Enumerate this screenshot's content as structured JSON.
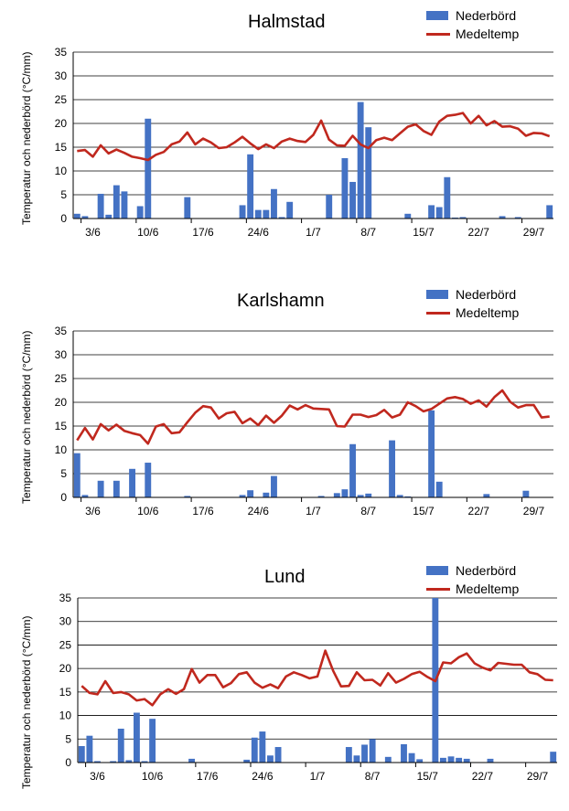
{
  "chart_data": [
    {
      "type": "bar",
      "title": "Halmstad",
      "ylabel": "Temperatur och nederbörd (°C/mm)",
      "xlabel": "",
      "ylim": [
        0,
        35
      ],
      "yticks": [
        0,
        5,
        10,
        15,
        20,
        25,
        30,
        35
      ],
      "grid": true,
      "legend_position": "top-right",
      "x_ticklabels": [
        "3/6",
        "10/6",
        "17/6",
        "24/6",
        "1/7",
        "8/7",
        "15/7",
        "22/7",
        "29/7"
      ],
      "series": [
        {
          "name": "Nederbörd",
          "kind": "bar",
          "color": "#4472C4",
          "values": [
            1.0,
            0.5,
            0,
            5.2,
            0.8,
            7.0,
            5.7,
            0,
            2.6,
            21.0,
            0,
            0,
            0,
            0,
            4.5,
            0,
            0,
            0,
            0,
            0,
            0,
            2.8,
            13.5,
            1.8,
            1.8,
            6.2,
            0.3,
            3.5,
            0,
            0,
            0,
            0,
            5.0,
            0,
            12.7,
            7.7,
            24.5,
            19.2,
            0,
            0,
            0,
            0,
            1.0,
            0,
            0,
            2.8,
            2.4,
            8.7,
            0.2,
            0.3,
            0,
            0,
            0,
            0,
            0.5,
            0,
            0.3,
            0,
            0,
            0,
            2.8
          ]
        },
        {
          "name": "Medeltemp",
          "kind": "line",
          "color": "#C0281E",
          "values": [
            14.2,
            14.4,
            13.0,
            15.4,
            13.7,
            14.5,
            13.8,
            13.0,
            12.7,
            12.3,
            13.4,
            14.0,
            15.6,
            16.2,
            18.1,
            15.6,
            16.8,
            16.0,
            14.8,
            15.0,
            16.0,
            17.2,
            15.8,
            14.6,
            15.6,
            14.8,
            16.2,
            16.8,
            16.3,
            16.1,
            17.6,
            20.6,
            16.6,
            15.4,
            15.3,
            17.4,
            15.6,
            14.8,
            16.5,
            17.0,
            16.5,
            17.9,
            19.3,
            19.8,
            18.4,
            17.6,
            20.4,
            21.6,
            21.8,
            22.2,
            20.0,
            21.6,
            19.6,
            20.5,
            19.3,
            19.4,
            18.9,
            17.4,
            18.0,
            17.9,
            17.3
          ]
        }
      ]
    },
    {
      "type": "bar",
      "title": "Karlshamn",
      "ylabel": "Temperatur och nederbörd (°C/mm)",
      "xlabel": "",
      "ylim": [
        0,
        35
      ],
      "yticks": [
        0,
        5,
        10,
        15,
        20,
        25,
        30,
        35
      ],
      "grid": true,
      "legend_position": "top-right",
      "x_ticklabels": [
        "3/6",
        "10/6",
        "17/6",
        "24/6",
        "1/7",
        "8/7",
        "15/7",
        "22/7",
        "29/7"
      ],
      "series": [
        {
          "name": "Nederbörd",
          "kind": "bar",
          "color": "#4472C4",
          "values": [
            9.3,
            0.5,
            0,
            3.5,
            0,
            3.5,
            0,
            6.0,
            0,
            7.3,
            0,
            0,
            0,
            0,
            0.3,
            0,
            0,
            0,
            0,
            0,
            0,
            0.5,
            1.5,
            0,
            1.0,
            4.5,
            0,
            0,
            0,
            0,
            0,
            0.3,
            0,
            0.9,
            1.7,
            11.2,
            0.5,
            0.8,
            0,
            0,
            12.0,
            0.5,
            0.2,
            0,
            0,
            18.3,
            3.3,
            0,
            0,
            0,
            0,
            0,
            0.7,
            0,
            0,
            0,
            0,
            1.4,
            0,
            0,
            0
          ]
        },
        {
          "name": "Medeltemp",
          "kind": "line",
          "color": "#C0281E",
          "values": [
            12.0,
            14.6,
            12.2,
            15.4,
            14.1,
            15.3,
            14.0,
            13.5,
            13.1,
            11.3,
            14.9,
            15.4,
            13.5,
            13.7,
            15.8,
            17.8,
            19.2,
            18.9,
            16.6,
            17.7,
            18.0,
            15.6,
            16.6,
            15.2,
            17.2,
            15.7,
            17.2,
            19.3,
            18.5,
            19.4,
            18.7,
            18.6,
            18.5,
            15.0,
            14.9,
            17.4,
            17.4,
            16.9,
            17.3,
            18.4,
            16.8,
            17.4,
            20.0,
            19.2,
            18.1,
            18.6,
            19.7,
            20.8,
            21.1,
            20.7,
            19.7,
            20.4,
            19.1,
            21.1,
            22.5,
            20.1,
            18.9,
            19.4,
            19.4,
            16.8,
            17.0
          ]
        }
      ]
    },
    {
      "type": "bar",
      "title": "Lund",
      "ylabel": "Temperatur och nederbörd (°C/mm)",
      "xlabel": "",
      "ylim": [
        0,
        35
      ],
      "yticks": [
        0,
        5,
        10,
        15,
        20,
        25,
        30,
        35
      ],
      "grid": true,
      "legend_position": "top-right",
      "x_ticklabels": [
        "3/6",
        "10/6",
        "17/6",
        "24/6",
        "1/7",
        "8/7",
        "15/7",
        "22/7",
        "29/7"
      ],
      "series": [
        {
          "name": "Nederbörd",
          "kind": "bar",
          "color": "#4472C4",
          "values": [
            3.5,
            5.7,
            0.3,
            0,
            0.3,
            7.2,
            0.5,
            10.6,
            0.3,
            9.3,
            0,
            0,
            0,
            0,
            0.8,
            0,
            0,
            0,
            0,
            0,
            0,
            0.6,
            5.3,
            6.6,
            1.5,
            3.3,
            0,
            0,
            0,
            0,
            0,
            0,
            0,
            0,
            3.3,
            1.5,
            3.8,
            5.0,
            0,
            1.2,
            0,
            3.9,
            2.0,
            0.7,
            0,
            35.0,
            1.0,
            1.3,
            1.0,
            0.8,
            0,
            0,
            0.8,
            0,
            0,
            0,
            0,
            0,
            0,
            0,
            2.3
          ]
        },
        {
          "name": "Medeltemp",
          "kind": "line",
          "color": "#C0281E",
          "values": [
            16.3,
            14.8,
            14.5,
            17.3,
            14.8,
            15.0,
            14.5,
            13.2,
            13.5,
            12.2,
            14.5,
            15.6,
            14.6,
            15.6,
            19.9,
            17.0,
            18.6,
            18.6,
            16.0,
            16.9,
            18.8,
            19.2,
            17.0,
            15.9,
            16.6,
            15.8,
            18.3,
            19.2,
            18.6,
            17.9,
            18.3,
            23.8,
            19.5,
            16.2,
            16.3,
            19.2,
            17.5,
            17.6,
            16.4,
            19.0,
            17.0,
            17.8,
            18.8,
            19.3,
            18.2,
            17.3,
            21.3,
            21.1,
            22.4,
            23.2,
            21.1,
            20.2,
            19.6,
            21.2,
            21.0,
            20.8,
            20.8,
            19.2,
            18.8,
            17.6,
            17.5
          ]
        }
      ]
    }
  ]
}
